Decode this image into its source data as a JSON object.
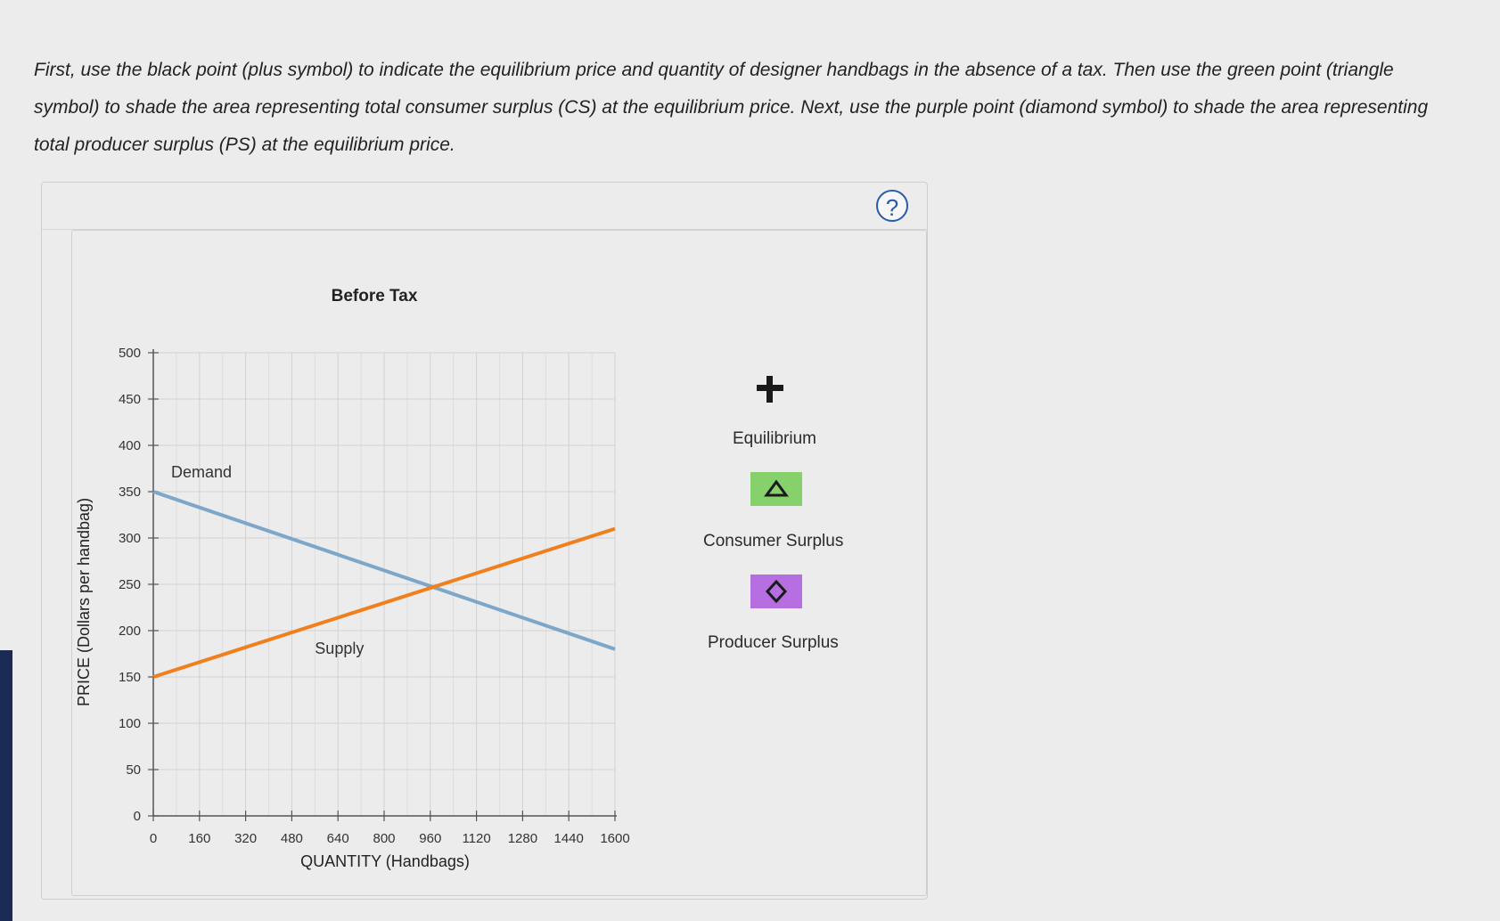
{
  "instructions": "First, use the black point (plus symbol) to indicate the equilibrium price and quantity of designer handbags in the absence of a tax. Then use the green point (triangle symbol) to shade the area representing total consumer surplus (CS) at the equilibrium price. Next, use the purple point (diamond symbol) to shade the area representing total producer surplus (PS) at the equilibrium price.",
  "help": {
    "icon": "question-icon",
    "label": "?"
  },
  "palette": {
    "equilibrium": {
      "icon": "plus-icon",
      "label": "Equilibrium",
      "color": "#1a1a1a"
    },
    "consumer_surplus": {
      "icon": "triangle-icon",
      "label": "Consumer Surplus",
      "color": "#86d16c"
    },
    "producer_surplus": {
      "icon": "diamond-icon",
      "label": "Producer Surplus",
      "color": "#b56fe0"
    }
  },
  "chart_data": {
    "type": "line",
    "title": "Before Tax",
    "xlabel": "QUANTITY (Handbags)",
    "ylabel": "PRICE (Dollars per handbag)",
    "xlim": [
      0,
      1600
    ],
    "ylim": [
      0,
      500
    ],
    "xticks": [
      0,
      160,
      320,
      480,
      640,
      800,
      960,
      1120,
      1280,
      1440,
      1600
    ],
    "yticks": [
      0,
      50,
      100,
      150,
      200,
      250,
      300,
      350,
      400,
      450,
      500
    ],
    "grid": true,
    "series": [
      {
        "name": "Demand",
        "color": "#7ea6c9",
        "x": [
          0,
          1600
        ],
        "y": [
          350,
          180
        ]
      },
      {
        "name": "Supply",
        "color": "#f07f1e",
        "x": [
          0,
          1600
        ],
        "y": [
          150,
          310
        ]
      }
    ]
  }
}
